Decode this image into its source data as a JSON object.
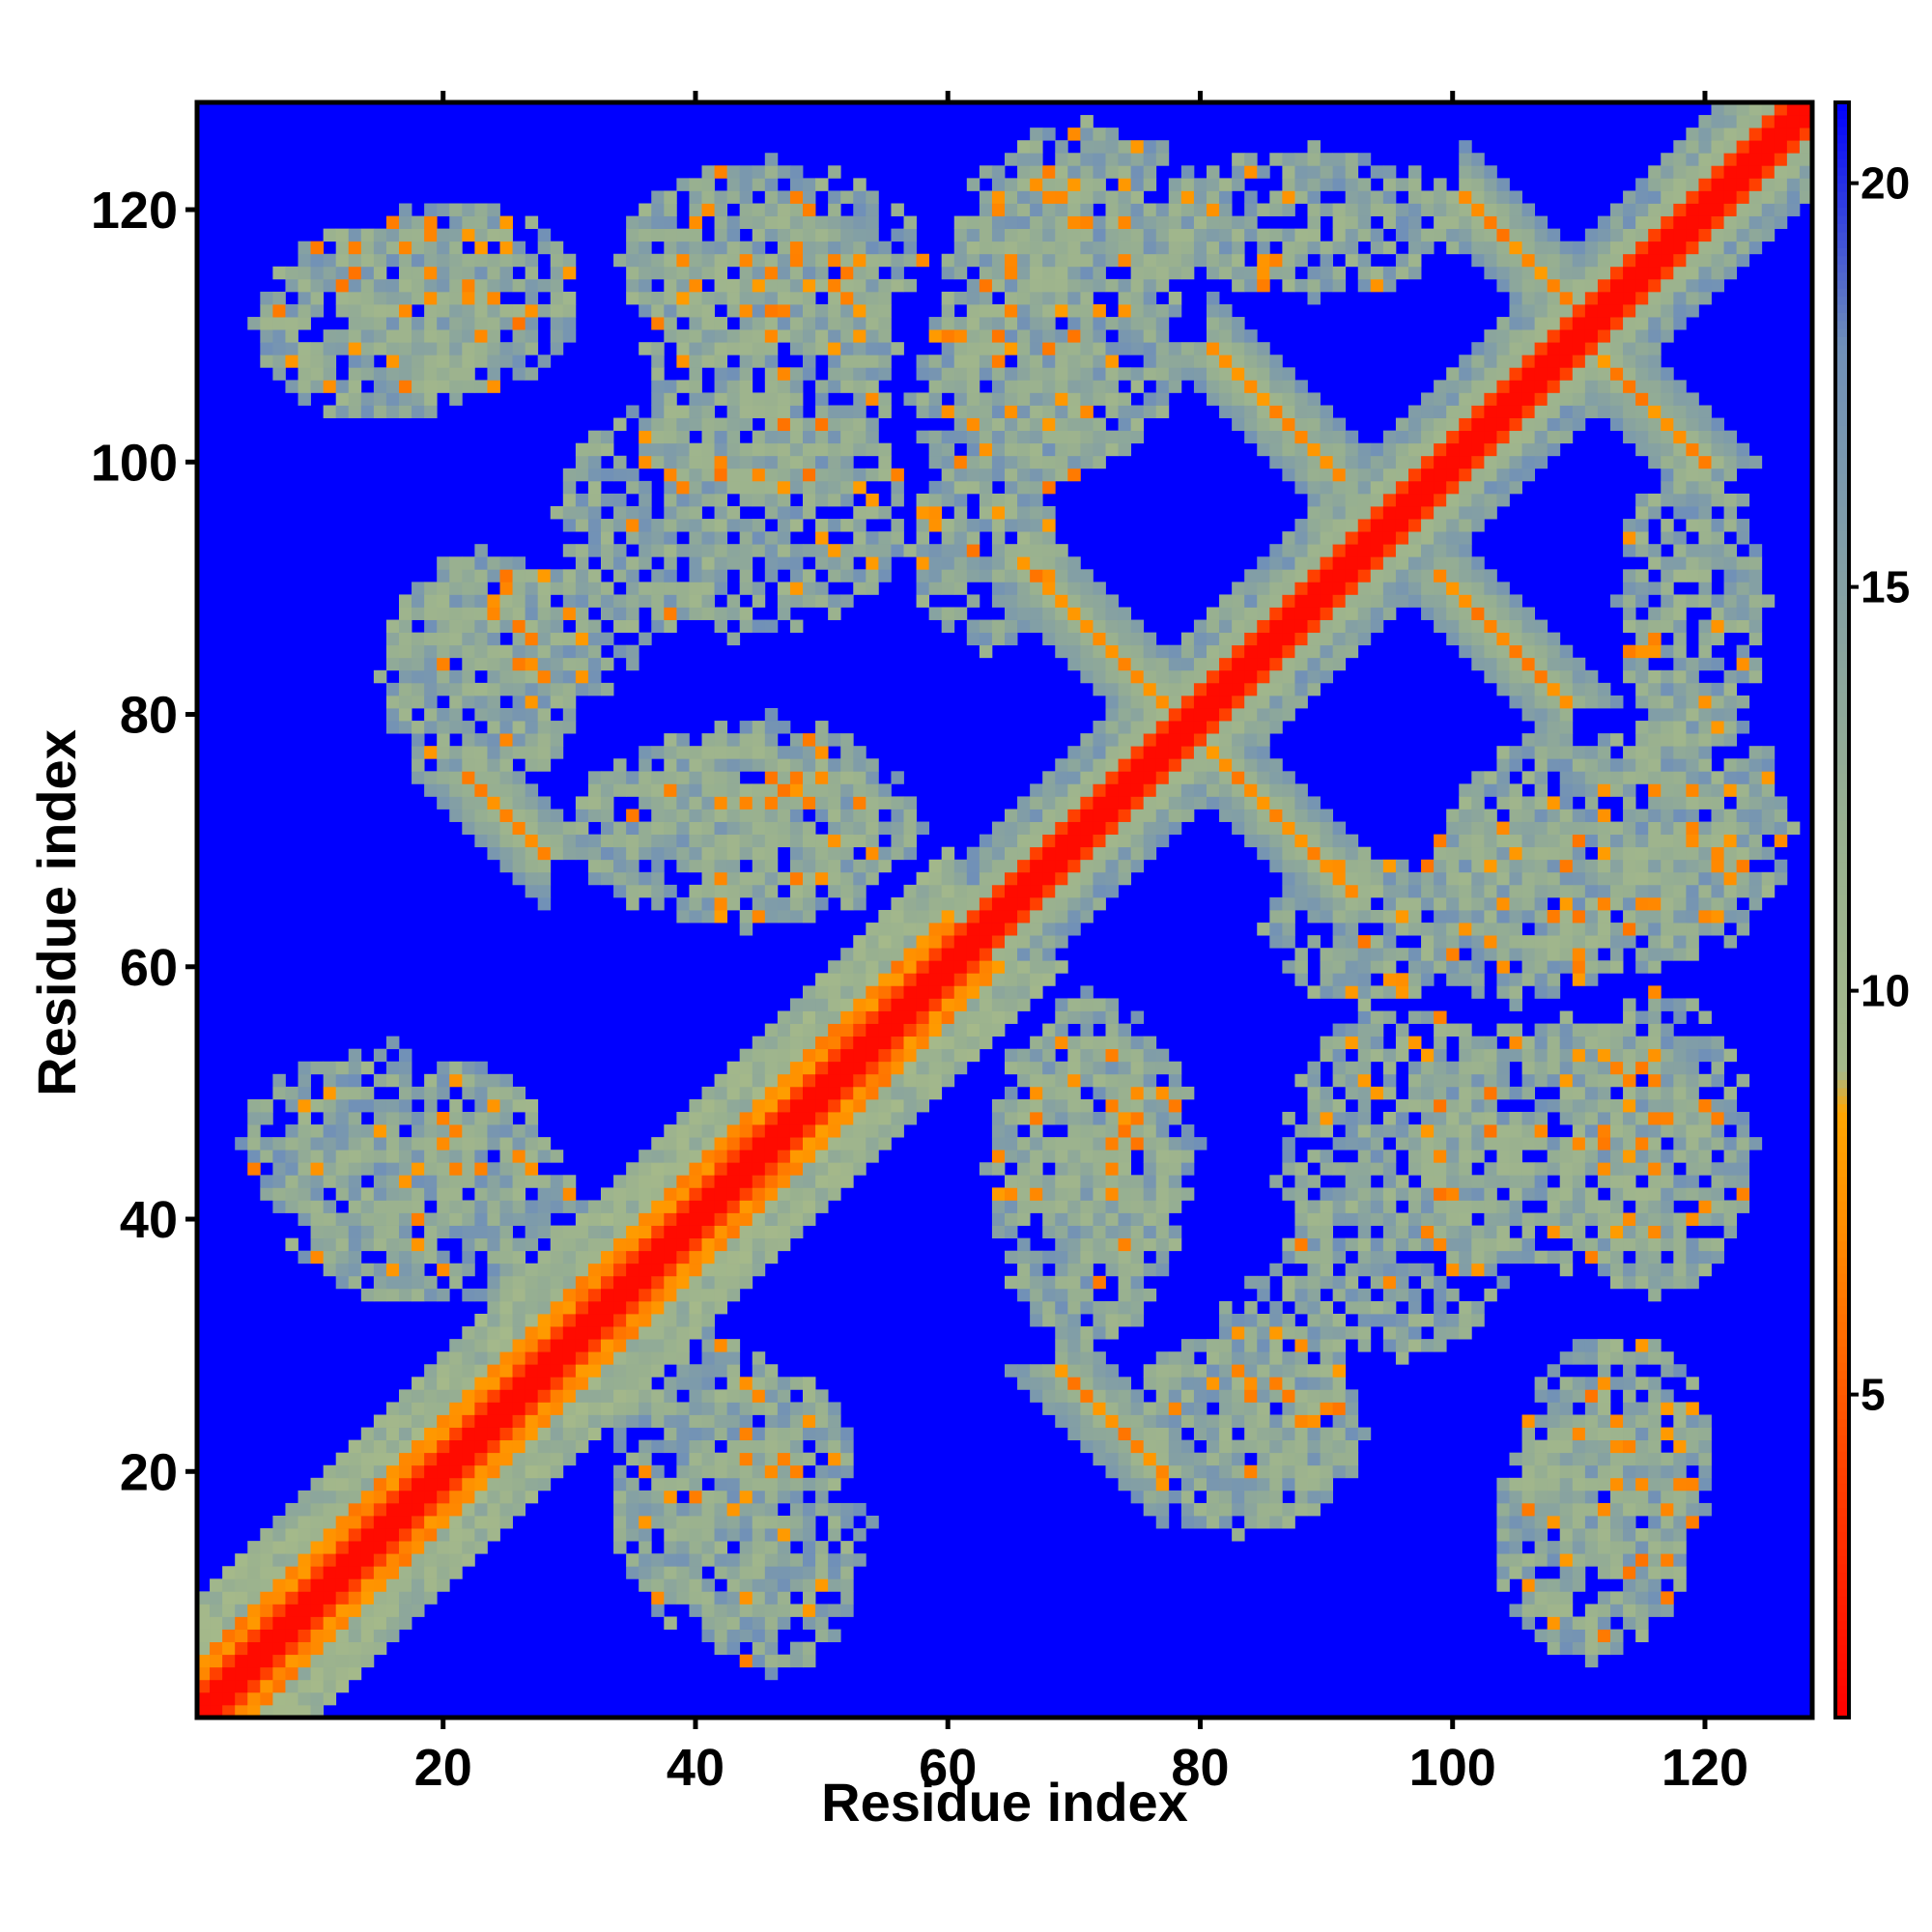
{
  "chart_data": {
    "type": "heatmap",
    "title": "",
    "xlabel": "Residue index",
    "ylabel": "Residue index",
    "xlim": [
      1,
      128
    ],
    "ylim": [
      1,
      128
    ],
    "x_ticks": [
      20,
      40,
      60,
      80,
      100,
      120
    ],
    "y_ticks": [
      20,
      40,
      60,
      80,
      100,
      120
    ],
    "n_residues": 128,
    "matrix_description": "Symmetric residue-residue distance map (Angstrom-like units). Main diagonal distance ~1-3, near-diagonal bands ~5-8, contact regions ~8-12, elsewhere >=21 (saturated).",
    "value_range": [
      1,
      21
    ],
    "colorbar": {
      "ticks": [
        5,
        10,
        15,
        20
      ],
      "stops": [
        {
          "value": 1,
          "color": "#ff0000"
        },
        {
          "value": 4,
          "color": "#ff4000"
        },
        {
          "value": 7,
          "color": "#ff8c00"
        },
        {
          "value": 8.5,
          "color": "#ffa500"
        },
        {
          "value": 9,
          "color": "#a5b98a"
        },
        {
          "value": 12,
          "color": "#98b090"
        },
        {
          "value": 18,
          "color": "#7090b8"
        },
        {
          "value": 21,
          "color": "#0000ff"
        }
      ]
    },
    "features": [
      {
        "kind": "diagonal",
        "from": 1,
        "to": 128,
        "value": 2
      },
      {
        "kind": "anti-parallel",
        "center": [
          73,
          24
        ],
        "length": 8,
        "value": 6
      },
      {
        "kind": "anti-parallel",
        "center": [
          25,
          72
        ],
        "length": 6,
        "value": 6
      },
      {
        "kind": "anti-parallel",
        "center": [
          86,
          72
        ],
        "length": 12,
        "value": 6
      },
      {
        "kind": "anti-parallel",
        "center": [
          72,
          86
        ],
        "length": 12,
        "value": 6
      },
      {
        "kind": "anti-parallel",
        "center": [
          86,
          104
        ],
        "length": 10,
        "value": 6
      },
      {
        "kind": "anti-parallel",
        "center": [
          104,
          86
        ],
        "length": 10,
        "value": 6
      },
      {
        "kind": "anti-parallel",
        "center": [
          116,
          104
        ],
        "length": 8,
        "value": 6
      },
      {
        "kind": "anti-parallel",
        "center": [
          105,
          117
        ],
        "length": 8,
        "value": 6
      },
      {
        "kind": "parallel-band",
        "from": 1,
        "to": 60,
        "offset": 3,
        "value": 7
      }
    ]
  }
}
